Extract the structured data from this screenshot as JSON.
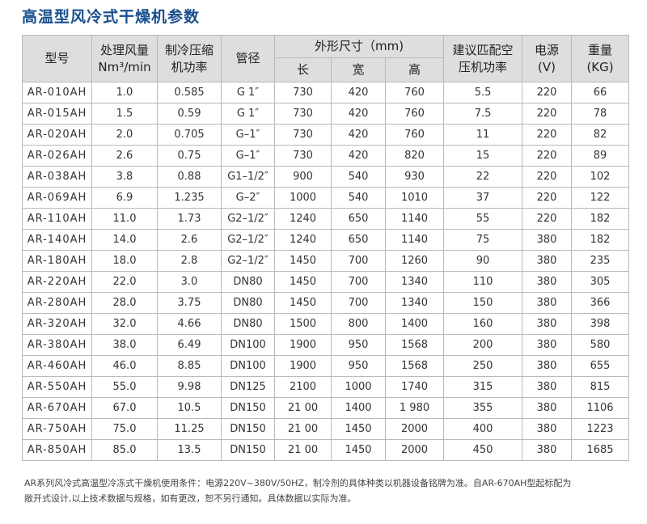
{
  "title": "高温型风冷式干燥机参数",
  "header": {
    "model": "型号",
    "flow": "处理风量",
    "flow_unit": "Nm³/min",
    "power1": "制冷压缩",
    "power2": "机功率",
    "pipe": "管径",
    "dims": "外形尺寸（mm)",
    "len": "长",
    "wid": "宽",
    "hei": "高",
    "comp1": "建议匹配空",
    "comp2": "压机功率",
    "supply": "电源",
    "supply_unit": "(V)",
    "weight": "重量",
    "weight_unit": "(KG)"
  },
  "rows": [
    [
      "AR-010AH",
      "1.0",
      "0.585",
      "G 1″",
      "730",
      "420",
      "760",
      "5.5",
      "220",
      "66"
    ],
    [
      "AR-015AH",
      "1.5",
      "0.59",
      "G 1″",
      "730",
      "420",
      "760",
      "7.5",
      "220",
      "78"
    ],
    [
      "AR-020AH",
      "2.0",
      "0.705",
      "G–1″",
      "730",
      "420",
      "760",
      "11",
      "220",
      "82"
    ],
    [
      "AR-026AH",
      "2.6",
      "0.75",
      "G–1″",
      "730",
      "420",
      "820",
      "15",
      "220",
      "89"
    ],
    [
      "AR-038AH",
      "3.8",
      "0.88",
      "G1–1/2″",
      "900",
      "540",
      "930",
      "22",
      "220",
      "102"
    ],
    [
      "AR-069AH",
      "6.9",
      "1.235",
      "G–2″",
      "1000",
      "540",
      "1010",
      "37",
      "220",
      "122"
    ],
    [
      "AR-110AH",
      "11.0",
      "1.73",
      "G2–1/2″",
      "1240",
      "650",
      "1140",
      "55",
      "220",
      "182"
    ],
    [
      "AR-140AH",
      "14.0",
      "2.6",
      "G2–1/2″",
      "1240",
      "650",
      "1140",
      "75",
      "380",
      "182"
    ],
    [
      "AR-180AH",
      "18.0",
      "2.8",
      "G2–1/2″",
      "1450",
      "700",
      "1260",
      "90",
      "380",
      "235"
    ],
    [
      "AR-220AH",
      "22.0",
      "3.0",
      "DN80",
      "1450",
      "700",
      "1340",
      "110",
      "380",
      "305"
    ],
    [
      "AR-280AH",
      "28.0",
      "3.75",
      "DN80",
      "1450",
      "700",
      "1340",
      "150",
      "380",
      "366"
    ],
    [
      "AR-320AH",
      "32.0",
      "4.66",
      "DN80",
      "1500",
      "800",
      "1400",
      "160",
      "380",
      "398"
    ],
    [
      "AR-380AH",
      "38.0",
      "6.49",
      "DN100",
      "1900",
      "950",
      "1568",
      "200",
      "380",
      "580"
    ],
    [
      "AR-460AH",
      "46.0",
      "8.85",
      "DN100",
      "1900",
      "950",
      "1568",
      "250",
      "380",
      "655"
    ],
    [
      "AR-550AH",
      "55.0",
      "9.98",
      "DN125",
      "2100",
      "1000",
      "1740",
      "315",
      "380",
      "815"
    ],
    [
      "AR-670AH",
      "67.0",
      "10.5",
      "DN150",
      "21 00",
      "1400",
      "1 980",
      "355",
      "380",
      "1106"
    ],
    [
      "AR-750AH",
      "75.0",
      "11.25",
      "DN150",
      "21 00",
      "1450",
      "2000",
      "400",
      "380",
      "1223"
    ],
    [
      "AR-850AH",
      "85.0",
      "13.5",
      "DN150",
      "21 00",
      "1450",
      "2000",
      "450",
      "380",
      "1685"
    ]
  ],
  "note": {
    "line1": "AR系列风冷式高温型冷冻式干燥机使用条件：电源220V~380V/50HZ，制冷剂的具体种类以机器设备铭牌为准。自AR-670AH型起标配为",
    "line2": "敞开式设计,以上技术数据与规格，如有更改，恕不另行通知。具体数据以实际为准。"
  }
}
